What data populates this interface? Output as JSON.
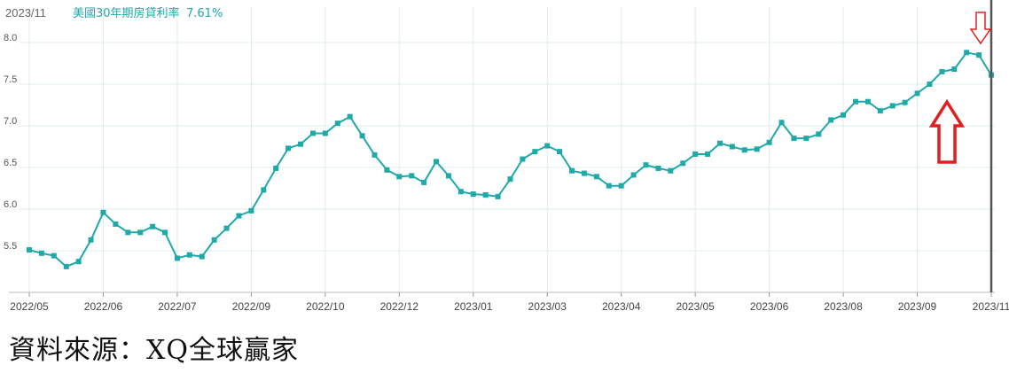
{
  "source_note": "資料來源：XQ全球贏家",
  "colors": {
    "line": "#1fa9a8",
    "grid": "#dcecec",
    "cursor": "#555555",
    "arrow": "#e02020"
  },
  "chart_data": {
    "type": "line",
    "header_date": "2023/11",
    "header_series": "美國30年期房貸利率",
    "header_value": "7.61%",
    "ylim": [
      5.0,
      8.3
    ],
    "yticks": [
      "8.0",
      "7.5",
      "7.0",
      "6.5",
      "6.0",
      "5.5"
    ],
    "xtick_labels": [
      "2022/05",
      "2022/06",
      "2022/07",
      "2022/09",
      "2022/10",
      "2022/12",
      "2023/01",
      "2023/03",
      "2023/04",
      "2023/05",
      "2023/06",
      "2023/08",
      "2023/09",
      "2023/11"
    ],
    "xtick_index": [
      0,
      6,
      12,
      18,
      24,
      30,
      36,
      42,
      48,
      54,
      60,
      66,
      72,
      78
    ],
    "series": [
      {
        "values": [
          5.51,
          5.47,
          5.44,
          5.31,
          5.37,
          5.63,
          5.96,
          5.82,
          5.72,
          5.72,
          5.79,
          5.72,
          5.41,
          5.45,
          5.43,
          5.63,
          5.77,
          5.92,
          5.98,
          6.23,
          6.49,
          6.73,
          6.78,
          6.91,
          6.91,
          7.03,
          7.11,
          6.88,
          6.65,
          6.47,
          6.39,
          6.4,
          6.32,
          6.57,
          6.4,
          6.21,
          6.18,
          6.17,
          6.15,
          6.36,
          6.6,
          6.69,
          6.76,
          6.69,
          6.46,
          6.43,
          6.39,
          6.28,
          6.28,
          6.41,
          6.53,
          6.49,
          6.46,
          6.55,
          6.66,
          6.66,
          6.79,
          6.75,
          6.71,
          6.72,
          6.8,
          7.04,
          6.85,
          6.85,
          6.9,
          7.07,
          7.13,
          7.29,
          7.29,
          7.18,
          7.24,
          7.28,
          7.39,
          7.5,
          7.65,
          7.68,
          7.88,
          7.85,
          7.61
        ]
      }
    ],
    "annotations": [
      "down-arrow above latest point",
      "up-arrow near latest point"
    ]
  }
}
